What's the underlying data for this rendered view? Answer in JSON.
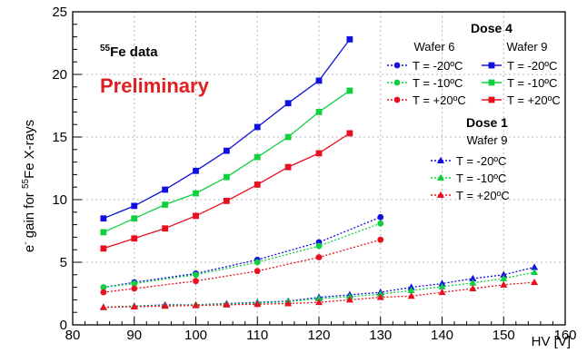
{
  "chart_data": {
    "type": "line",
    "title": "",
    "xlabel": "HV [V]",
    "ylabel": "e⁻ gain for ⁵⁵Fe X-rays",
    "ylabel_parts": {
      "pre": "e",
      "pre_sup": "-",
      "mid": " gain for ",
      "mid_sup": "55",
      "post": "Fe X-rays"
    },
    "xlim": [
      80,
      160
    ],
    "ylim": [
      0,
      25
    ],
    "x_ticks": [
      80,
      90,
      100,
      110,
      120,
      130,
      140,
      150,
      160
    ],
    "y_ticks": [
      0,
      5,
      10,
      15,
      20,
      25
    ],
    "grid": true,
    "annotations": {
      "data_label": {
        "sup": "55",
        "text": "Fe data"
      },
      "preliminary": {
        "text": "Preliminary",
        "color": "#e02020"
      }
    },
    "legend": {
      "placement": "top-right",
      "dose4_title": "Dose 4",
      "dose4_col1": "Wafer 6",
      "dose4_col2": "Wafer 9",
      "dose1_title": "Dose 1",
      "dose1_col": "Wafer 9",
      "temps": [
        "T = -20ºC",
        "T = -10ºC",
        "T = +20ºC"
      ]
    },
    "colors": {
      "m20": "#1010e0",
      "m10": "#10d040",
      "p20": "#e81020"
    },
    "series": [
      {
        "group": "dose4_w6",
        "temp": "m20",
        "marker": "circle",
        "dash": true,
        "x": [
          85,
          90,
          100,
          110,
          120,
          130
        ],
        "y": [
          3.0,
          3.4,
          4.1,
          5.2,
          6.6,
          8.6
        ]
      },
      {
        "group": "dose4_w6",
        "temp": "m10",
        "marker": "circle",
        "dash": true,
        "x": [
          85,
          90,
          100,
          110,
          120,
          130
        ],
        "y": [
          3.0,
          3.3,
          4.0,
          5.0,
          6.3,
          8.1
        ]
      },
      {
        "group": "dose4_w6",
        "temp": "p20",
        "marker": "circle",
        "dash": true,
        "x": [
          85,
          90,
          100,
          110,
          120,
          130
        ],
        "y": [
          2.6,
          2.9,
          3.5,
          4.3,
          5.4,
          6.8
        ]
      },
      {
        "group": "dose4_w9",
        "temp": "m20",
        "marker": "square",
        "dash": false,
        "x": [
          85,
          90,
          95,
          100,
          105,
          110,
          115,
          120,
          125
        ],
        "y": [
          8.5,
          9.5,
          10.8,
          12.3,
          13.9,
          15.8,
          17.7,
          19.5,
          22.8
        ]
      },
      {
        "group": "dose4_w9",
        "temp": "m10",
        "marker": "square",
        "dash": false,
        "x": [
          85,
          90,
          95,
          100,
          105,
          110,
          115,
          120,
          125
        ],
        "y": [
          7.4,
          8.5,
          9.6,
          10.5,
          11.8,
          13.4,
          15.0,
          17.0,
          18.7
        ]
      },
      {
        "group": "dose4_w9",
        "temp": "p20",
        "marker": "square",
        "dash": false,
        "x": [
          85,
          90,
          95,
          100,
          105,
          110,
          115,
          120,
          125
        ],
        "y": [
          6.1,
          6.9,
          7.7,
          8.7,
          9.9,
          11.2,
          12.6,
          13.7,
          15.3
        ]
      },
      {
        "group": "dose1_w9",
        "temp": "m20",
        "marker": "triangle",
        "dash": true,
        "x": [
          85,
          90,
          95,
          100,
          105,
          110,
          115,
          120,
          125,
          130,
          135,
          140,
          145,
          150,
          155
        ],
        "y": [
          1.4,
          1.5,
          1.6,
          1.6,
          1.7,
          1.8,
          1.9,
          2.2,
          2.4,
          2.6,
          3.0,
          3.3,
          3.7,
          4.0,
          4.6
        ]
      },
      {
        "group": "dose1_w9",
        "temp": "m10",
        "marker": "triangle",
        "dash": true,
        "x": [
          85,
          90,
          95,
          100,
          105,
          110,
          115,
          120,
          125,
          130,
          135,
          140,
          145,
          150,
          155
        ],
        "y": [
          1.4,
          1.5,
          1.55,
          1.6,
          1.65,
          1.75,
          1.85,
          2.1,
          2.25,
          2.45,
          2.75,
          3.05,
          3.35,
          3.7,
          4.2
        ]
      },
      {
        "group": "dose1_w9",
        "temp": "p20",
        "marker": "triangle",
        "dash": true,
        "x": [
          85,
          90,
          95,
          100,
          105,
          110,
          115,
          120,
          125,
          130,
          135,
          140,
          145,
          150,
          155
        ],
        "y": [
          1.4,
          1.45,
          1.5,
          1.55,
          1.6,
          1.65,
          1.7,
          1.8,
          2.0,
          2.2,
          2.3,
          2.6,
          2.9,
          3.2,
          3.4
        ]
      }
    ]
  }
}
